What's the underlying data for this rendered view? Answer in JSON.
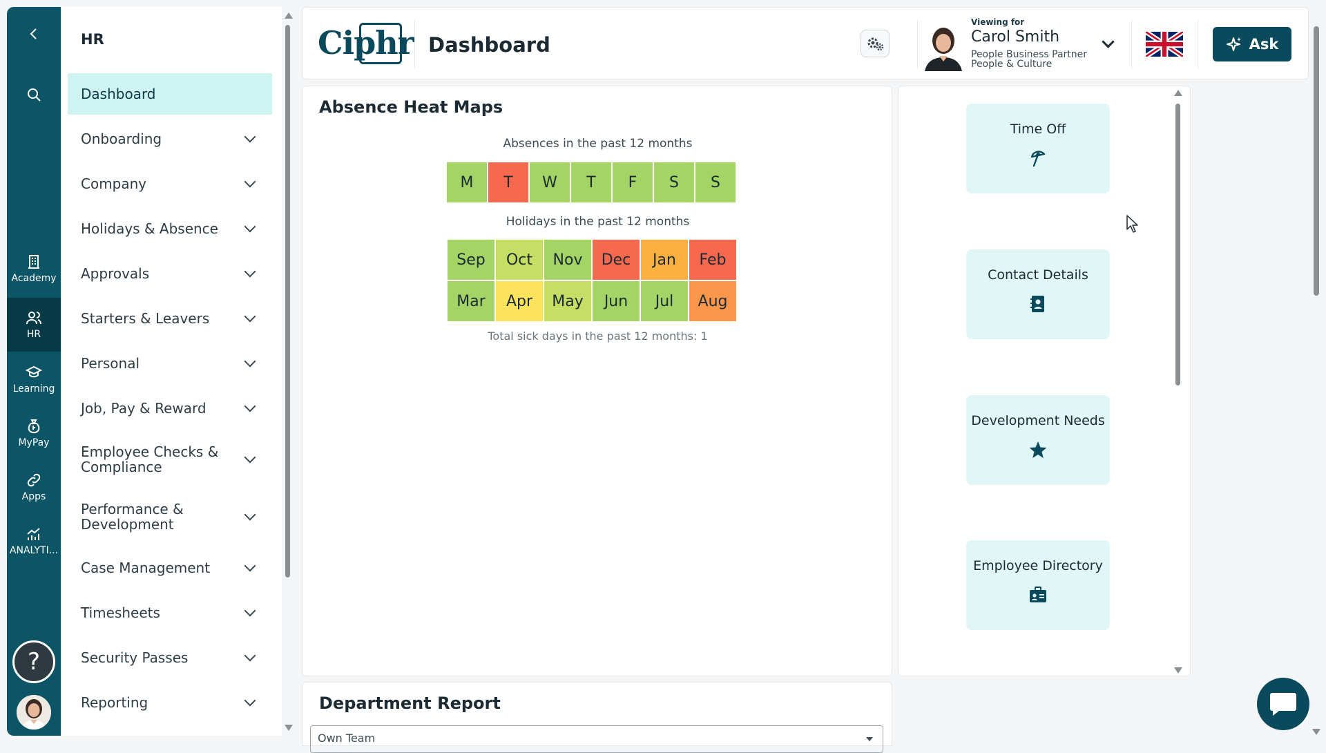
{
  "rail": {
    "items": [
      {
        "label": "",
        "icon": "chevron-left-icon"
      },
      {
        "label": "",
        "icon": "search-icon"
      },
      {
        "label": "Academy",
        "icon": "building-icon"
      },
      {
        "label": "HR",
        "icon": "people-icon"
      },
      {
        "label": "Learning",
        "icon": "graduation-cap-icon"
      },
      {
        "label": "MyPay",
        "icon": "money-bag-icon"
      },
      {
        "label": "Apps",
        "icon": "link-icon"
      },
      {
        "label": "ANALYTI...",
        "icon": "analytics-icon"
      }
    ],
    "active": "HR",
    "help_label": "?"
  },
  "nav": {
    "title": "HR",
    "items": [
      {
        "label": "Dashboard",
        "active": true,
        "expandable": false
      },
      {
        "label": "Onboarding",
        "expandable": true
      },
      {
        "label": "Company",
        "expandable": true
      },
      {
        "label": "Holidays & Absence",
        "expandable": true
      },
      {
        "label": "Approvals",
        "expandable": true
      },
      {
        "label": "Starters & Leavers",
        "expandable": true
      },
      {
        "label": "Personal",
        "expandable": true
      },
      {
        "label": "Job, Pay & Reward",
        "expandable": true
      },
      {
        "label": "Employee Checks & Compliance",
        "expandable": true
      },
      {
        "label": "Performance & Development",
        "expandable": true
      },
      {
        "label": "Case Management",
        "expandable": true
      },
      {
        "label": "Timesheets",
        "expandable": true
      },
      {
        "label": "Security Passes",
        "expandable": true
      },
      {
        "label": "Reporting",
        "expandable": true
      }
    ]
  },
  "header": {
    "logo_text": "Ciphr",
    "page_title": "Dashboard",
    "viewing_for_label": "Viewing for",
    "user_name": "Carol Smith",
    "user_role": "People Business Partner",
    "user_department": "People & Culture",
    "ask_label": "Ask"
  },
  "heat_maps": {
    "title": "Absence Heat Maps",
    "absences_label": "Absences in the past 12 months",
    "days": [
      {
        "label": "M",
        "color": "#a3d465"
      },
      {
        "label": "T",
        "color": "#f6694e"
      },
      {
        "label": "W",
        "color": "#a3d465"
      },
      {
        "label": "T",
        "color": "#a3d465"
      },
      {
        "label": "F",
        "color": "#a3d465"
      },
      {
        "label": "S",
        "color": "#a3d465"
      },
      {
        "label": "S",
        "color": "#a3d465"
      }
    ],
    "holidays_label": "Holidays in the past 12 months",
    "months": [
      {
        "label": "Sep",
        "color": "#a3d465"
      },
      {
        "label": "Oct",
        "color": "#c5de63"
      },
      {
        "label": "Nov",
        "color": "#a3d465"
      },
      {
        "label": "Dec",
        "color": "#f6694e"
      },
      {
        "label": "Jan",
        "color": "#fbb040"
      },
      {
        "label": "Feb",
        "color": "#f6694e"
      },
      {
        "label": "Mar",
        "color": "#a3d465"
      },
      {
        "label": "Apr",
        "color": "#fde25c"
      },
      {
        "label": "May",
        "color": "#c5de63"
      },
      {
        "label": "Jun",
        "color": "#a3d465"
      },
      {
        "label": "Jul",
        "color": "#a3d465"
      },
      {
        "label": "Aug",
        "color": "#fb964a"
      }
    ],
    "sick_total": "Total sick days in the past 12 months: 1"
  },
  "quick_links": [
    {
      "label": "Time Off",
      "icon": "beach-umbrella-icon"
    },
    {
      "label": "Contact Details",
      "icon": "contact-book-icon"
    },
    {
      "label": "Development Needs",
      "icon": "star-icon"
    },
    {
      "label": "Employee Directory",
      "icon": "id-badge-icon"
    }
  ],
  "department_report": {
    "title": "Department Report",
    "select_value": "Own Team"
  },
  "colors": {
    "brand": "#0b4a5c",
    "rail": "#0b5567",
    "nav_active": "#cff3f1",
    "tile": "#e1f7f7"
  }
}
